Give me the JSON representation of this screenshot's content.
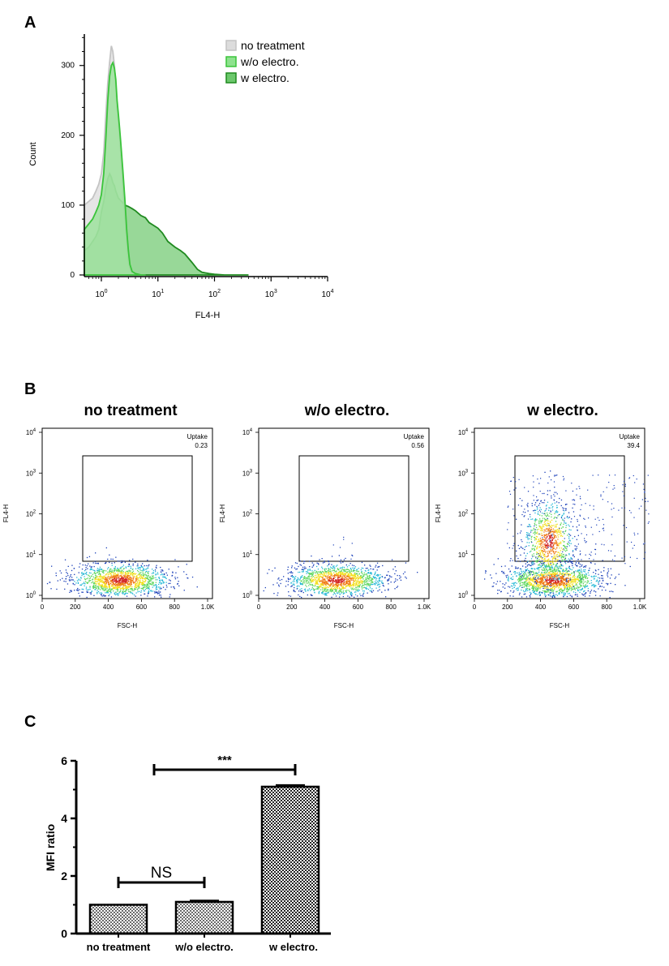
{
  "chart_data": [
    {
      "panel": "A",
      "type": "area",
      "xlabel": "FL4-H",
      "ylabel": "Count",
      "x_scale": "log",
      "xlim": [
        0.5,
        10000
      ],
      "ylim": [
        0,
        345
      ],
      "x_ticks": [
        {
          "v": 1,
          "base": "10",
          "exp": "0"
        },
        {
          "v": 10,
          "base": "10",
          "exp": "1"
        },
        {
          "v": 100,
          "base": "10",
          "exp": "2"
        },
        {
          "v": 1000,
          "base": "10",
          "exp": "3"
        },
        {
          "v": 10000,
          "base": "10",
          "exp": "4"
        }
      ],
      "y_ticks": [
        0,
        100,
        200,
        300
      ],
      "legend_position": "top-right",
      "series": [
        {
          "name": "no treatment",
          "fill": "#dcdcdc",
          "stroke": "#c4c4c4",
          "x": [
            0.5,
            0.7,
            0.8,
            0.9,
            1.0,
            1.1,
            1.2,
            1.3,
            1.4,
            1.5,
            1.6,
            1.7,
            1.8,
            1.9,
            2.0,
            2.1,
            2.2,
            2.4,
            2.6,
            2.8,
            3.0,
            3.2,
            3.5,
            4.0,
            5.0,
            6.0
          ],
          "y": [
            100,
            110,
            120,
            130,
            145,
            175,
            230,
            275,
            305,
            328,
            320,
            300,
            270,
            240,
            220,
            200,
            175,
            130,
            85,
            45,
            20,
            8,
            3,
            1,
            0,
            0
          ]
        },
        {
          "name": "w/o electro.",
          "fill": "#8ee28e",
          "stroke": "#3ac43a",
          "x": [
            0.5,
            0.7,
            0.8,
            0.9,
            1.0,
            1.1,
            1.2,
            1.3,
            1.4,
            1.5,
            1.6,
            1.7,
            1.8,
            1.9,
            2.0,
            2.1,
            2.2,
            2.4,
            2.6,
            2.8,
            3.0,
            3.2,
            3.5,
            4.0,
            5.0,
            6.0
          ],
          "y": [
            65,
            80,
            90,
            100,
            115,
            145,
            195,
            250,
            285,
            300,
            304,
            296,
            280,
            250,
            230,
            210,
            190,
            150,
            110,
            65,
            35,
            15,
            5,
            2,
            0,
            0
          ]
        },
        {
          "name": "w electro.",
          "fill": "#6cc86c",
          "stroke": "#1f8a1f",
          "x": [
            0.5,
            0.6,
            0.7,
            0.8,
            0.9,
            1.0,
            1.1,
            1.2,
            1.3,
            1.4,
            1.5,
            1.6,
            1.7,
            1.8,
            2.0,
            2.3,
            2.6,
            3.0,
            3.5,
            4.0,
            5.0,
            6.0,
            7.0,
            8.0,
            10.0,
            12.0,
            15.0,
            20.0,
            25.0,
            30.0,
            40.0,
            50.0,
            60.0,
            80.0,
            100.0,
            150.0,
            250.0,
            400.0
          ],
          "y": [
            35,
            40,
            48,
            55,
            65,
            90,
            105,
            125,
            138,
            145,
            140,
            132,
            128,
            120,
            110,
            105,
            100,
            98,
            95,
            92,
            85,
            82,
            75,
            72,
            67,
            60,
            48,
            40,
            35,
            30,
            18,
            8,
            4,
            2,
            1,
            0,
            0,
            0
          ]
        }
      ]
    },
    {
      "panel": "B",
      "type": "scatter",
      "xlabel": "FSC-H",
      "ylabel": "FL4-H",
      "x_ticks": [
        "0",
        "200",
        "400",
        "600",
        "800",
        "1.0K"
      ],
      "y_ticks": [
        {
          "base": "10",
          "exp": "0"
        },
        {
          "base": "10",
          "exp": "1"
        },
        {
          "base": "10",
          "exp": "2"
        },
        {
          "base": "10",
          "exp": "3"
        },
        {
          "base": "10",
          "exp": "4"
        }
      ],
      "gate_label": "Uptake",
      "plots": [
        {
          "title": "no treatment",
          "uptake": "0.23"
        },
        {
          "title": "w/o electro.",
          "uptake": "0.56"
        },
        {
          "title": "w electro.",
          "uptake": "39.4"
        }
      ]
    },
    {
      "panel": "C",
      "type": "bar",
      "ylabel": "MFI ratio",
      "categories": [
        "no treatment",
        "w/o electro.",
        "w electro."
      ],
      "values": [
        1.0,
        1.1,
        5.1
      ],
      "errors": [
        0.0,
        0.04,
        0.05
      ],
      "ylim": [
        0,
        6
      ],
      "y_ticks": [
        "0",
        "2",
        "4",
        "6"
      ],
      "annotations": [
        {
          "between": [
            0,
            1
          ],
          "label": "NS"
        },
        {
          "between": [
            0,
            2
          ],
          "label": "***"
        }
      ]
    }
  ]
}
